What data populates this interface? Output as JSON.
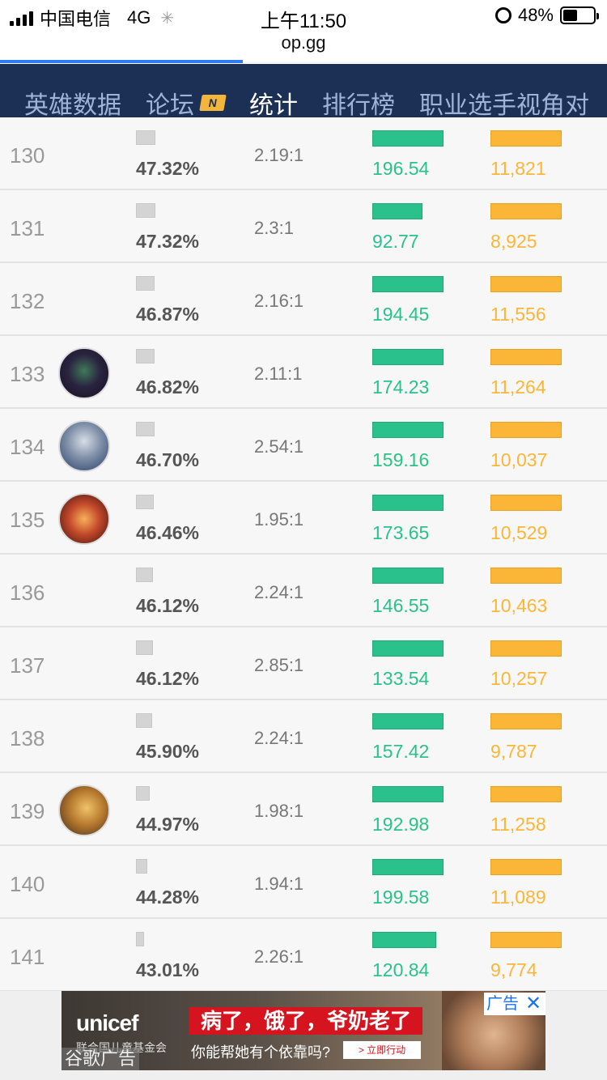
{
  "status": {
    "carrier": "中国电信",
    "network": "4G",
    "time": "上午11:50",
    "battery": "48%",
    "battery_level": 0.48
  },
  "url": "op.gg",
  "load_progress": 0.4,
  "nav": {
    "items": [
      {
        "label": "英雄数据",
        "active": false
      },
      {
        "label": "论坛",
        "active": false,
        "badge": "N"
      },
      {
        "label": "统计",
        "active": true
      },
      {
        "label": "排行榜",
        "active": false
      },
      {
        "label": "职业选手视角对",
        "active": false
      }
    ]
  },
  "colors": {
    "nav_bg": "#1c2f55",
    "green": "#2bc18c",
    "orange": "#fbb638"
  },
  "rows": [
    {
      "rank": "130",
      "avatar": null,
      "winrate": "47.32%",
      "winrate_bar": 0.48,
      "kda": "2.19:1",
      "green_value": "196.54",
      "green_bar": 1.0,
      "orange_value": "11,821",
      "orange_bar": 1.0
    },
    {
      "rank": "131",
      "avatar": null,
      "winrate": "47.32%",
      "winrate_bar": 0.48,
      "kda": "2.3:1",
      "green_value": "92.77",
      "green_bar": 0.7,
      "orange_value": "8,925",
      "orange_bar": 1.0
    },
    {
      "rank": "132",
      "avatar": null,
      "winrate": "46.87%",
      "winrate_bar": 0.46,
      "kda": "2.16:1",
      "green_value": "194.45",
      "green_bar": 1.0,
      "orange_value": "11,556",
      "orange_bar": 1.0
    },
    {
      "rank": "133",
      "avatar": "champion-avatar-dark",
      "winrate": "46.82%",
      "winrate_bar": 0.46,
      "kda": "2.11:1",
      "green_value": "174.23",
      "green_bar": 1.0,
      "orange_value": "11,264",
      "orange_bar": 1.0
    },
    {
      "rank": "134",
      "avatar": "champion-avatar-armor",
      "winrate": "46.70%",
      "winrate_bar": 0.45,
      "kda": "2.54:1",
      "green_value": "159.16",
      "green_bar": 1.0,
      "orange_value": "10,037",
      "orange_bar": 1.0
    },
    {
      "rank": "135",
      "avatar": "champion-avatar-fire",
      "winrate": "46.46%",
      "winrate_bar": 0.43,
      "kda": "1.95:1",
      "green_value": "173.65",
      "green_bar": 1.0,
      "orange_value": "10,529",
      "orange_bar": 1.0
    },
    {
      "rank": "136",
      "avatar": null,
      "winrate": "46.12%",
      "winrate_bar": 0.42,
      "kda": "2.24:1",
      "green_value": "146.55",
      "green_bar": 1.0,
      "orange_value": "10,463",
      "orange_bar": 1.0
    },
    {
      "rank": "137",
      "avatar": null,
      "winrate": "46.12%",
      "winrate_bar": 0.42,
      "kda": "2.85:1",
      "green_value": "133.54",
      "green_bar": 1.0,
      "orange_value": "10,257",
      "orange_bar": 1.0
    },
    {
      "rank": "138",
      "avatar": null,
      "winrate": "45.90%",
      "winrate_bar": 0.4,
      "kda": "2.24:1",
      "green_value": "157.42",
      "green_bar": 1.0,
      "orange_value": "9,787",
      "orange_bar": 1.0
    },
    {
      "rank": "139",
      "avatar": "champion-avatar-gold",
      "winrate": "44.97%",
      "winrate_bar": 0.33,
      "kda": "1.98:1",
      "green_value": "192.98",
      "green_bar": 1.0,
      "orange_value": "11,258",
      "orange_bar": 1.0
    },
    {
      "rank": "140",
      "avatar": null,
      "winrate": "44.28%",
      "winrate_bar": 0.28,
      "kda": "1.94:1",
      "green_value": "199.58",
      "green_bar": 1.0,
      "orange_value": "11,089",
      "orange_bar": 1.0
    },
    {
      "rank": "141",
      "avatar": null,
      "winrate": "43.01%",
      "winrate_bar": 0.19,
      "kda": "2.26:1",
      "green_value": "120.84",
      "green_bar": 0.9,
      "orange_value": "9,774",
      "orange_bar": 1.0
    }
  ],
  "ad": {
    "brand": "unicef",
    "brand_sub": "联合国儿童基金会",
    "headline": "病了，饿了，爷奶老了",
    "subline": "你能帮她有个依靠吗?",
    "cta": "> 立即行动",
    "label": "广告",
    "close": "✕",
    "provider": "谷歌广告"
  }
}
